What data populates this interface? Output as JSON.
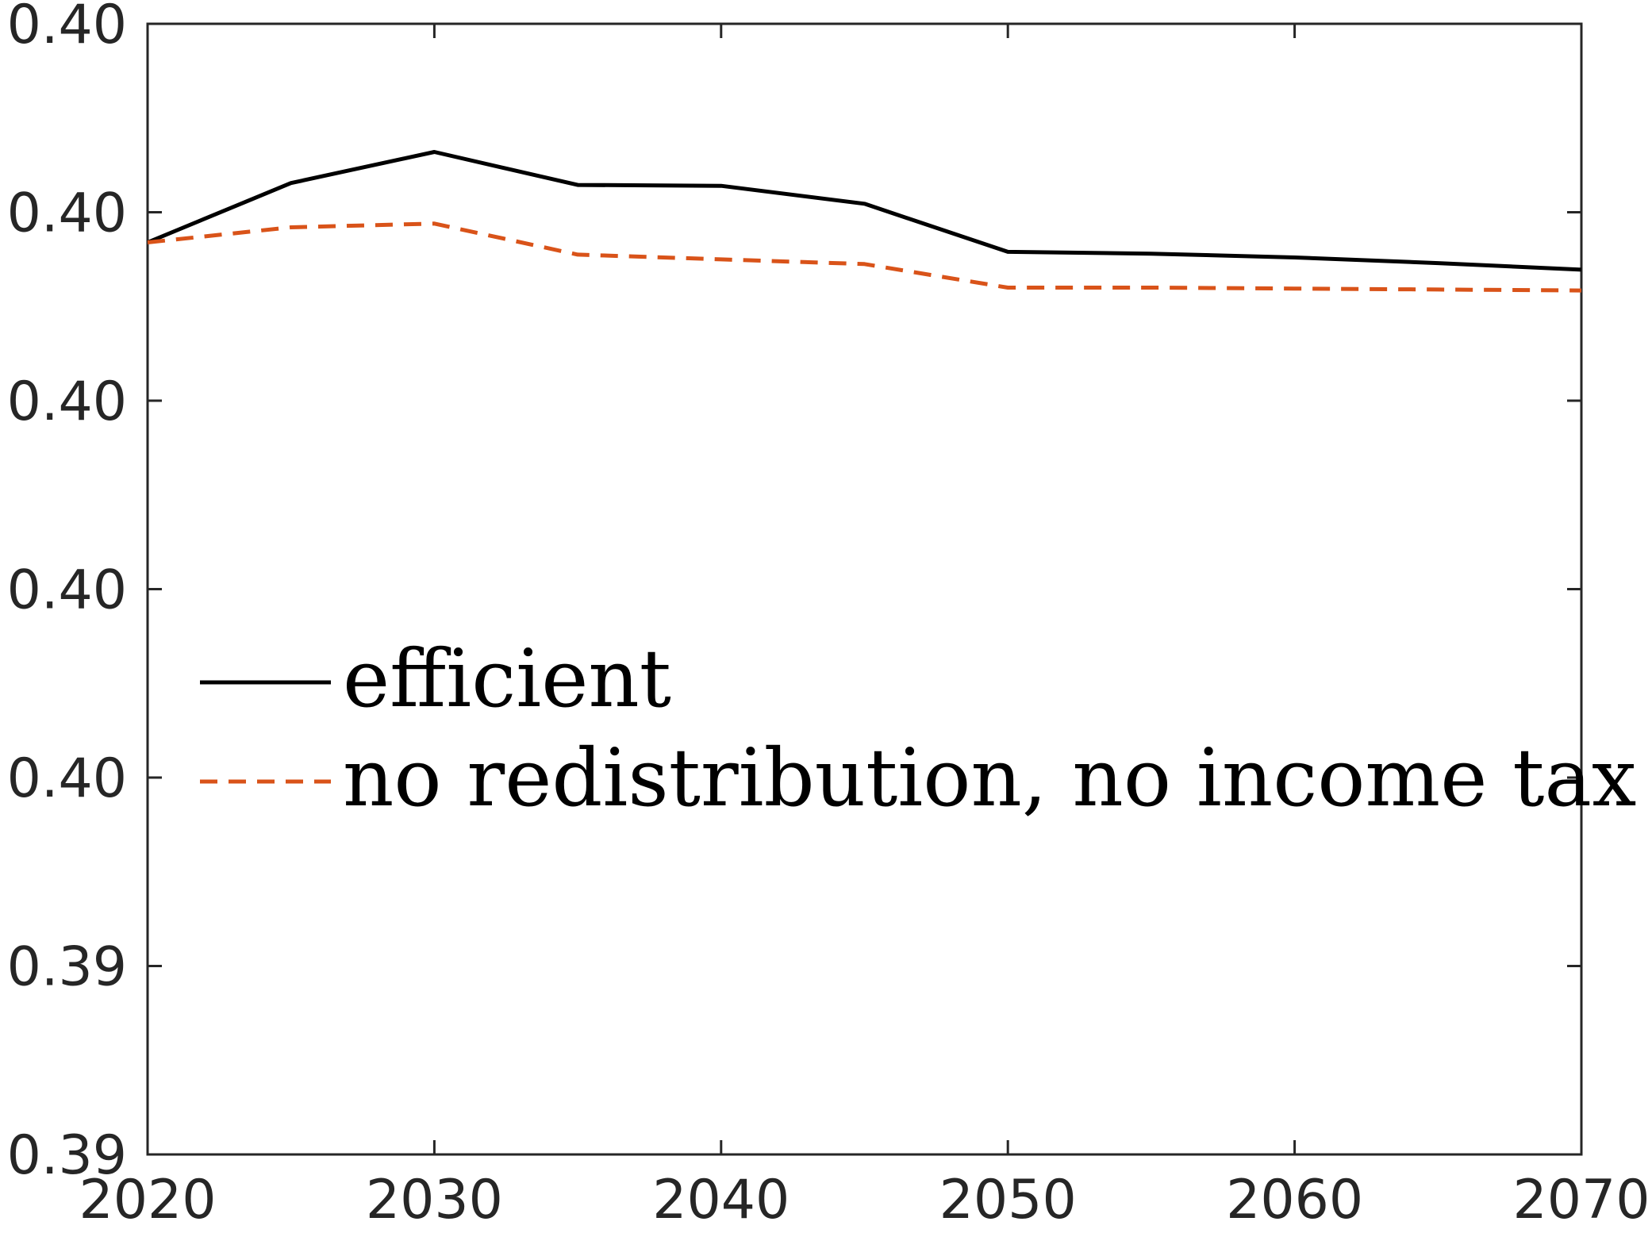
{
  "chart_data": {
    "type": "line",
    "title": "",
    "xlabel": "",
    "ylabel": "",
    "x": [
      2020,
      2025,
      2030,
      2035,
      2040,
      2045,
      2050,
      2055,
      2060,
      2065,
      2070
    ],
    "xlim": [
      2020,
      2070
    ],
    "ylim": [
      0.39,
      0.402
    ],
    "x_ticks": [
      2020,
      2030,
      2040,
      2050,
      2060,
      2070
    ],
    "x_tick_labels": [
      "2020",
      "2030",
      "2040",
      "2050",
      "2060",
      "2070"
    ],
    "y_ticks": [
      0.39,
      0.392,
      0.394,
      0.396,
      0.398,
      0.4,
      0.402
    ],
    "y_tick_labels": [
      "0.39",
      "0.39",
      "0.40",
      "0.40",
      "0.40",
      "0.40",
      "0.40"
    ],
    "grid": false,
    "legend_position": "center-left",
    "series": [
      {
        "name": "efficient",
        "color": "#000000",
        "style": "solid",
        "values": [
          0.39968,
          0.40031,
          0.40064,
          0.40029,
          0.40028,
          0.40009,
          0.39958,
          0.39956,
          0.39952,
          0.39946,
          0.39939
        ]
      },
      {
        "name": "no redistribution, no income tax",
        "color": "#D95319",
        "style": "dashed",
        "values": [
          0.39968,
          0.39984,
          0.39988,
          0.39955,
          0.3995,
          0.39945,
          0.3992,
          0.3992,
          0.39919,
          0.39918,
          0.39917
        ]
      }
    ]
  }
}
